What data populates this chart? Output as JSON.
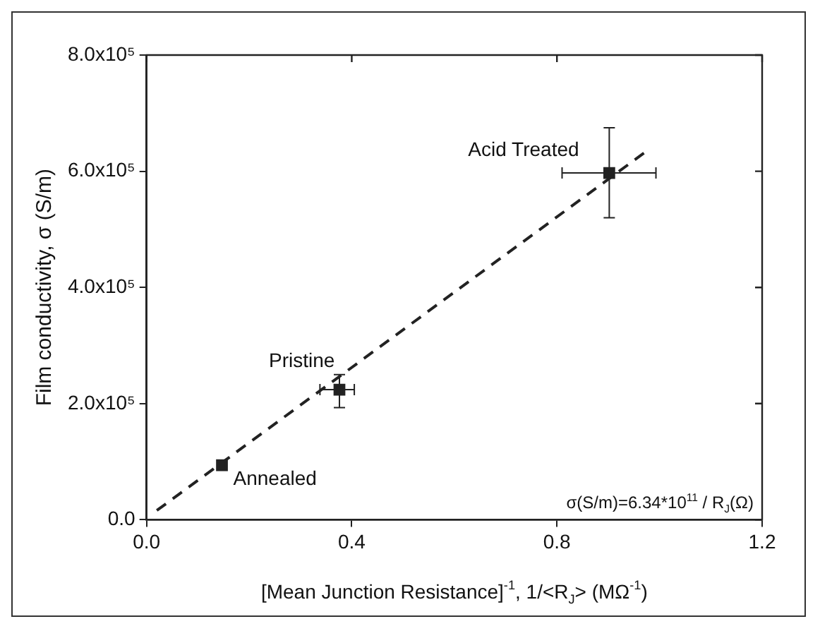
{
  "chart_data": {
    "type": "scatter",
    "xlabel": "[Mean Junction Resistance]$^{-1}$, 1/<R$_{J}$> (MΩ$^{-1}$)",
    "ylabel": "Film conductivity, σ (S/m)",
    "series": [
      {
        "color": "#222222",
        "marker": "square",
        "x": [
          0.147,
          0.376,
          0.902
        ],
        "values": [
          94000,
          224000,
          597000
        ],
        "errors": [
          null,
          [
            193000,
            250000
          ],
          [
            520000,
            675000
          ]
        ],
        "xerrors": [
          null,
          [
            0.338,
            0.405
          ],
          [
            0.81,
            0.993
          ]
        ]
      },
      {
        "type": "line",
        "color": "#222222",
        "line_style": "dashed",
        "marker": "none",
        "x": [
          0.02,
          0.98
        ],
        "values": [
          16000,
          638000
        ]
      }
    ],
    "annotations": [
      {
        "text": "Annealed",
        "x": 0.147,
        "y": 94000
      },
      {
        "text": "Pristine",
        "x": 0.376,
        "y": 224000
      },
      {
        "text": "Acid Treated",
        "x": 0.902,
        "y": 597000
      },
      "σ(S/m)=6.34*10$^{11}$ / R$_{J}$(Ω)"
    ],
    "xlim": [
      0,
      1.2
    ],
    "xticks": [
      {
        "value": 0,
        "label": "0.0"
      },
      {
        "value": 0.4,
        "label": "0.4"
      },
      {
        "value": 0.8,
        "label": "0.8"
      },
      {
        "value": 1.2,
        "label": "1.2"
      }
    ],
    "ylim": [
      0,
      800000
    ],
    "yticks": [
      {
        "value": 0,
        "label": "0.0"
      },
      {
        "value": 200000,
        "label": "2.0x10⁵"
      },
      {
        "value": 400000,
        "label": "4.0x10⁵"
      },
      {
        "value": 600000,
        "label": "6.0x10⁵"
      },
      {
        "value": 800000,
        "label": "8.0x10⁵"
      }
    ],
    "grid": false,
    "legend": false
  }
}
